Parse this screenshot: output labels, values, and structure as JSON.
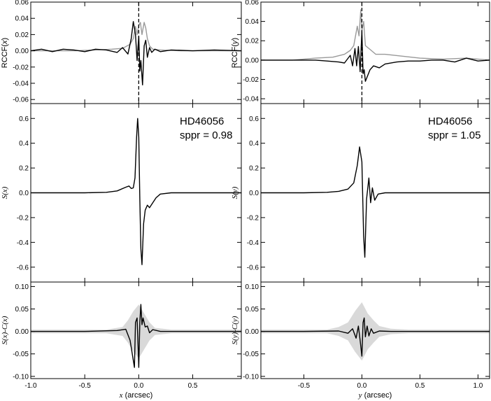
{
  "chart_data": [
    {
      "panel": "left-top",
      "type": "line",
      "ylabel": "RCCF(x)",
      "xlim": [
        -1.0,
        0.95
      ],
      "ylim": [
        -0.065,
        0.06
      ],
      "yticks": [
        -0.06,
        -0.04,
        -0.02,
        0.0,
        0.02,
        0.04,
        0.06
      ],
      "ytick_labels": [
        "-0.06",
        "-0.04",
        "-0.02",
        "0.00",
        "0.02",
        "0.04",
        "0.06"
      ],
      "dashed_vline_x": 0.0,
      "series": [
        {
          "color": "#999999",
          "x": [
            -1.0,
            -0.8,
            -0.6,
            -0.4,
            -0.25,
            -0.15,
            -0.08,
            -0.05,
            -0.03,
            -0.015,
            0.0,
            0.015,
            0.03,
            0.05,
            0.065,
            0.08,
            0.1,
            0.13,
            0.2,
            0.4,
            0.6,
            0.95
          ],
          "y": [
            0.0,
            0.0,
            0.0,
            0.001,
            0.002,
            0.003,
            0.008,
            0.015,
            0.03,
            0.02,
            0.031,
            0.035,
            0.02,
            0.035,
            0.028,
            0.015,
            0.006,
            0.002,
            0.001,
            0.0,
            0.0,
            0.0
          ]
        },
        {
          "color": "#000000",
          "x": [
            -1.0,
            -0.9,
            -0.8,
            -0.7,
            -0.6,
            -0.5,
            -0.4,
            -0.3,
            -0.2,
            -0.15,
            -0.1,
            -0.07,
            -0.05,
            -0.03,
            -0.015,
            0.0,
            0.01,
            0.02,
            0.035,
            0.05,
            0.065,
            0.08,
            0.1,
            0.12,
            0.15,
            0.2,
            0.3,
            0.5,
            0.7,
            0.95
          ],
          "y": [
            0.0,
            0.002,
            -0.001,
            0.002,
            0.001,
            -0.001,
            0.002,
            0.001,
            -0.002,
            0.004,
            -0.004,
            0.015,
            0.036,
            0.02,
            -0.012,
            0.018,
            -0.025,
            -0.012,
            -0.042,
            0.006,
            0.013,
            -0.008,
            0.004,
            -0.002,
            0.002,
            -0.001,
            0.001,
            0.0,
            0.001,
            0.0
          ]
        }
      ]
    },
    {
      "panel": "left-middle",
      "type": "line",
      "ylabel": "S(x)",
      "xlim": [
        -1.0,
        0.95
      ],
      "ylim": [
        -0.72,
        0.72
      ],
      "yticks": [
        -0.6,
        -0.4,
        -0.2,
        0.0,
        0.2,
        0.4,
        0.6
      ],
      "ytick_labels": [
        "-0.6",
        "-0.4",
        "-0.2",
        "0.0",
        "0.2",
        "0.4",
        "0.6"
      ],
      "annotation": [
        "HD46056",
        "sppr = 0.98"
      ],
      "series": [
        {
          "color": "#000000",
          "x": [
            -1.0,
            -0.5,
            -0.3,
            -0.2,
            -0.12,
            -0.09,
            -0.07,
            -0.05,
            -0.035,
            -0.02,
            -0.01,
            0.0,
            0.01,
            0.02,
            0.03,
            0.045,
            0.06,
            0.08,
            0.1,
            0.13,
            0.16,
            0.2,
            0.3,
            0.5,
            0.95
          ],
          "y": [
            0.0,
            0.0,
            0.004,
            0.015,
            0.045,
            0.055,
            0.035,
            0.04,
            0.12,
            0.45,
            0.6,
            0.45,
            -0.05,
            -0.45,
            -0.58,
            -0.25,
            -0.14,
            -0.1,
            -0.12,
            -0.08,
            -0.04,
            -0.01,
            0.0,
            0.0,
            0.0
          ]
        }
      ]
    },
    {
      "panel": "left-bottom",
      "type": "line",
      "ylabel": "S(x)-C(x)",
      "xlabel": "x (arcsec)",
      "xlim": [
        -1.0,
        0.95
      ],
      "ylim": [
        -0.105,
        0.11
      ],
      "yticks": [
        -0.1,
        -0.05,
        0.0,
        0.05,
        0.1
      ],
      "ytick_labels": [
        "-0.10",
        "-0.05",
        "0.00",
        "0.05",
        "0.10"
      ],
      "xticks": [
        -1.0,
        -0.5,
        0.0,
        0.5
      ],
      "xtick_labels": [
        "-1.0",
        "-0.5",
        "0.0",
        "0.5"
      ],
      "band_color": "#d9d9d9",
      "band_x": [
        -1.0,
        -0.3,
        -0.15,
        -0.1,
        -0.05,
        0.0,
        0.05,
        0.1,
        0.15,
        0.3,
        0.95
      ],
      "band_half": [
        0.004,
        0.004,
        0.01,
        0.025,
        0.045,
        0.06,
        0.04,
        0.02,
        0.008,
        0.004,
        0.004
      ],
      "series": [
        {
          "color": "#000000",
          "x": [
            -1.0,
            -0.5,
            -0.2,
            -0.12,
            -0.08,
            -0.06,
            -0.04,
            -0.03,
            -0.015,
            -0.005,
            0.0,
            0.01,
            0.02,
            0.03,
            0.04,
            0.06,
            0.08,
            0.1,
            0.13,
            0.2,
            0.4,
            0.95
          ],
          "y": [
            0.0,
            0.0,
            0.002,
            0.005,
            -0.02,
            -0.05,
            -0.08,
            0.02,
            0.03,
            -0.04,
            -0.08,
            0.02,
            0.06,
            0.015,
            0.03,
            0.01,
            0.012,
            -0.003,
            0.004,
            0.0,
            0.0,
            0.0
          ]
        }
      ]
    },
    {
      "panel": "right-top",
      "type": "line",
      "ylabel": "RCCF(y)",
      "xlim": [
        -0.87,
        1.1
      ],
      "ylim": [
        -0.045,
        0.06
      ],
      "yticks": [
        -0.04,
        -0.02,
        0.0,
        0.02,
        0.04,
        0.06
      ],
      "ytick_labels": [
        "-0.04",
        "-0.02",
        "0.00",
        "0.02",
        "0.04",
        "0.06"
      ],
      "dashed_vline_x": 0.0,
      "series": [
        {
          "color": "#999999",
          "x": [
            -0.87,
            -0.6,
            -0.4,
            -0.25,
            -0.15,
            -0.1,
            -0.07,
            -0.04,
            -0.025,
            -0.01,
            0.0,
            0.015,
            0.03,
            0.05,
            0.08,
            0.12,
            0.2,
            0.35,
            0.5,
            0.7,
            0.9,
            1.1
          ],
          "y": [
            0.0,
            0.0,
            0.002,
            0.003,
            0.006,
            0.01,
            0.015,
            0.035,
            0.025,
            0.052,
            0.03,
            0.04,
            0.015,
            0.013,
            0.01,
            0.006,
            0.006,
            0.004,
            0.002,
            0.001,
            0.002,
            0.0
          ]
        },
        {
          "color": "#000000",
          "x": [
            -0.87,
            -0.6,
            -0.4,
            -0.3,
            -0.2,
            -0.15,
            -0.1,
            -0.08,
            -0.06,
            -0.045,
            -0.03,
            -0.015,
            0.0,
            0.01,
            0.02,
            0.03,
            0.05,
            0.07,
            0.1,
            0.15,
            0.2,
            0.3,
            0.4,
            0.5,
            0.6,
            0.7,
            0.8,
            0.9,
            1.0,
            1.1
          ],
          "y": [
            0.0,
            0.0,
            0.0,
            -0.001,
            -0.002,
            -0.003,
            0.005,
            -0.006,
            0.012,
            -0.006,
            0.014,
            -0.012,
            0.03,
            -0.014,
            -0.01,
            -0.022,
            -0.016,
            -0.01,
            -0.006,
            -0.008,
            -0.004,
            -0.002,
            -0.001,
            -0.001,
            0.0,
            0.0,
            -0.002,
            0.002,
            -0.001,
            0.0
          ]
        }
      ]
    },
    {
      "panel": "right-middle",
      "type": "line",
      "ylabel": "S(y)",
      "xlim": [
        -0.87,
        1.1
      ],
      "ylim": [
        -0.72,
        0.72
      ],
      "yticks": [
        -0.6,
        -0.4,
        -0.2,
        0.0,
        0.2,
        0.4,
        0.6
      ],
      "ytick_labels": [
        "-0.6",
        "-0.4",
        "-0.2",
        "0.0",
        "0.2",
        "0.4",
        "0.6"
      ],
      "annotation": [
        "HD46056",
        "sppr = 1.05"
      ],
      "series": [
        {
          "color": "#000000",
          "x": [
            -0.87,
            -0.5,
            -0.3,
            -0.2,
            -0.12,
            -0.07,
            -0.04,
            -0.02,
            0.0,
            0.015,
            0.025,
            0.04,
            0.06,
            0.075,
            0.09,
            0.11,
            0.14,
            0.2,
            0.3,
            0.5,
            1.1
          ],
          "y": [
            0.0,
            0.0,
            0.004,
            0.012,
            0.03,
            0.08,
            0.22,
            0.37,
            0.25,
            -0.35,
            -0.52,
            -0.05,
            0.12,
            -0.08,
            0.04,
            -0.06,
            -0.01,
            0.0,
            0.0,
            0.0,
            0.0
          ]
        }
      ]
    },
    {
      "panel": "right-bottom",
      "type": "line",
      "ylabel": "S(y)-C(y)",
      "xlabel": "y (arcsec)",
      "xlim": [
        -0.87,
        1.1
      ],
      "ylim": [
        -0.105,
        0.11
      ],
      "yticks": [
        -0.1,
        -0.05,
        0.0,
        0.05,
        0.1
      ],
      "ytick_labels": [
        "-0.10",
        "-0.05",
        "0.00",
        "0.05",
        "0.10"
      ],
      "xticks": [
        -0.5,
        0.0,
        0.5,
        1.0
      ],
      "xtick_labels": [
        "-0.5",
        "0.0",
        "0.5",
        "1.0"
      ],
      "band_color": "#d9d9d9",
      "band_x": [
        -0.87,
        -0.3,
        -0.2,
        -0.12,
        -0.06,
        0.0,
        0.05,
        0.1,
        0.15,
        0.25,
        0.4,
        1.1
      ],
      "band_half": [
        0.004,
        0.004,
        0.01,
        0.02,
        0.045,
        0.065,
        0.04,
        0.025,
        0.012,
        0.006,
        0.004,
        0.004
      ],
      "series": [
        {
          "color": "#000000",
          "x": [
            -0.87,
            -0.5,
            -0.2,
            -0.12,
            -0.08,
            -0.05,
            -0.03,
            -0.015,
            0.0,
            0.01,
            0.02,
            0.03,
            0.045,
            0.06,
            0.08,
            0.1,
            0.15,
            0.25,
            0.5,
            1.1
          ],
          "y": [
            0.0,
            0.0,
            0.001,
            -0.004,
            0.006,
            -0.015,
            0.012,
            -0.02,
            -0.055,
            0.02,
            0.03,
            -0.012,
            0.012,
            -0.01,
            0.006,
            -0.004,
            0.001,
            0.0,
            0.0,
            0.0
          ]
        }
      ]
    }
  ]
}
